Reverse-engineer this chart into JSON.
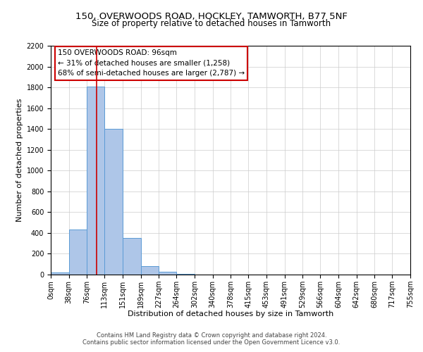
{
  "title": "150, OVERWOODS ROAD, HOCKLEY, TAMWORTH, B77 5NF",
  "subtitle": "Size of property relative to detached houses in Tamworth",
  "xlabel": "Distribution of detached houses by size in Tamworth",
  "ylabel": "Number of detached properties",
  "bar_edges": [
    0,
    38,
    76,
    113,
    151,
    189,
    227,
    264,
    302,
    340,
    378,
    415,
    453,
    491,
    529,
    566,
    604,
    642,
    680,
    717,
    755
  ],
  "bar_heights": [
    20,
    430,
    1810,
    1400,
    350,
    80,
    25,
    5,
    0,
    0,
    0,
    0,
    0,
    0,
    0,
    0,
    0,
    0,
    0,
    0
  ],
  "bar_color": "#aec6e8",
  "bar_edgecolor": "#5b9bd5",
  "bar_linewidth": 0.7,
  "vline_x": 96,
  "vline_color": "#cc0000",
  "vline_linewidth": 1.2,
  "annotation_line1": "150 OVERWOODS ROAD: 96sqm",
  "annotation_line2": "← 31% of detached houses are smaller (1,258)",
  "annotation_line3": "68% of semi-detached houses are larger (2,787) →",
  "tick_labels": [
    "0sqm",
    "38sqm",
    "76sqm",
    "113sqm",
    "151sqm",
    "189sqm",
    "227sqm",
    "264sqm",
    "302sqm",
    "340sqm",
    "378sqm",
    "415sqm",
    "453sqm",
    "491sqm",
    "529sqm",
    "566sqm",
    "604sqm",
    "642sqm",
    "680sqm",
    "717sqm",
    "755sqm"
  ],
  "ylim": [
    0,
    2200
  ],
  "yticks": [
    0,
    200,
    400,
    600,
    800,
    1000,
    1200,
    1400,
    1600,
    1800,
    2000,
    2200
  ],
  "footer_line1": "Contains HM Land Registry data © Crown copyright and database right 2024.",
  "footer_line2": "Contains public sector information licensed under the Open Government Licence v3.0.",
  "background_color": "#ffffff",
  "grid_color": "#cccccc",
  "title_fontsize": 9.5,
  "subtitle_fontsize": 8.5,
  "axis_label_fontsize": 8,
  "tick_fontsize": 7,
  "annotation_fontsize": 7.5,
  "footer_fontsize": 6
}
